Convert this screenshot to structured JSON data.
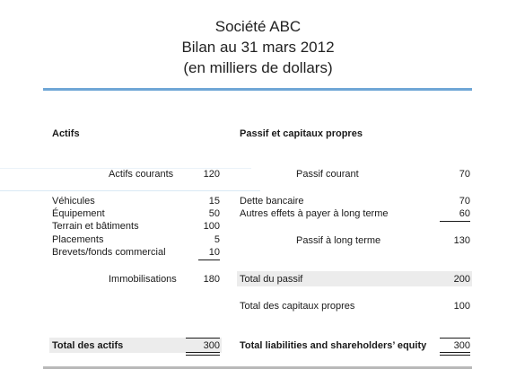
{
  "header": {
    "line1": "Société ABC",
    "line2": "Bilan au 31 mars 2012",
    "line3": "(en milliers de dollars)"
  },
  "assets": {
    "heading": "Actifs",
    "current_label": "Actifs courants",
    "current_value": "120",
    "items": [
      {
        "label": "Véhicules",
        "value": "15"
      },
      {
        "label": "Équipement",
        "value": "50"
      },
      {
        "label": "Terrain et bâtiments",
        "value": "100"
      },
      {
        "label": "Placements",
        "value": "5"
      },
      {
        "label": "Brevets/fonds commercial",
        "value": "10"
      }
    ],
    "fixed_label": "Immobilisations",
    "fixed_value": "180",
    "total_label": "Total des actifs",
    "total_value": "300"
  },
  "liabilities": {
    "heading": "Passif et capitaux propres",
    "current_label": "Passif courant",
    "current_value": "70",
    "items": [
      {
        "label": "Dette bancaire",
        "value": "70"
      },
      {
        "label": "Autres effets à payer à long terme",
        "value": "60"
      }
    ],
    "long_term_label": "Passif à long terme",
    "long_term_value": "130",
    "total_liab_label": "Total du passif",
    "total_liab_value": "200",
    "equity_label": "Total des capitaux propres",
    "equity_value": "100",
    "grand_total_label": "Total liabilities and shareholders’ equity",
    "grand_total_value": "300"
  },
  "colors": {
    "accent_rule": "#6fa6d6",
    "bottom_rule": "#b9b9b9",
    "band": "#ececec"
  }
}
